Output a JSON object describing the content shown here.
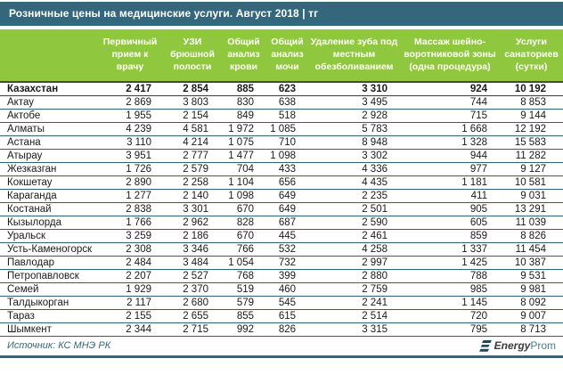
{
  "title": "Розничные цены на медицинские услуги. Август 2018 | тг",
  "source": {
    "text": "Источник: КС МНЭ РК"
  },
  "logo": {
    "energy": "Energy",
    "prom": "Prom"
  },
  "colors": {
    "teal": "#34677B",
    "green": "#8FC73E",
    "row_border": "#2F6173",
    "dark_border": "#474747",
    "logo_dark": "#1C4A59",
    "logo_prom": "#457F92"
  },
  "chart_data": {
    "type": "table",
    "title": "Розничные цены на медицинские услуги. Август 2018 | тг",
    "columns": [
      "Первичный прием к врачу",
      "УЗИ брюшной полости",
      "Общий анализ крови",
      "Общий анализ мочи",
      "Удаление зуба под местным обезболиванием",
      "Массаж шейно-воротниковой зоны (одна процедура)",
      "Услуги санаториев (сутки)"
    ],
    "rows": [
      {
        "region": "Казахстан",
        "bold": true,
        "values": [
          "2 417",
          "2 854",
          "885",
          "623",
          "3 310",
          "924",
          "10 192"
        ]
      },
      {
        "region": "Актау",
        "bold": false,
        "values": [
          "2 869",
          "3 803",
          "830",
          "638",
          "3 495",
          "744",
          "8 853"
        ]
      },
      {
        "region": "Актобе",
        "bold": false,
        "values": [
          "1 955",
          "2 154",
          "849",
          "518",
          "2 928",
          "715",
          "9 144"
        ]
      },
      {
        "region": "Алматы",
        "bold": false,
        "values": [
          "4 239",
          "4 581",
          "1 972",
          "1 085",
          "5 783",
          "1 668",
          "12 192"
        ]
      },
      {
        "region": "Астана",
        "bold": false,
        "values": [
          "3 110",
          "4 214",
          "1 075",
          "710",
          "8 948",
          "1 328",
          "15 583"
        ]
      },
      {
        "region": "Атырау",
        "bold": false,
        "values": [
          "3 951",
          "2 777",
          "1 477",
          "1 098",
          "3 302",
          "944",
          "11 282"
        ]
      },
      {
        "region": "Жезказган",
        "bold": false,
        "values": [
          "1 726",
          "2 579",
          "704",
          "433",
          "4 336",
          "977",
          "9 127"
        ]
      },
      {
        "region": "Кокшетау",
        "bold": false,
        "values": [
          "2 890",
          "2 258",
          "1 104",
          "656",
          "4 435",
          "1 181",
          "10 581"
        ]
      },
      {
        "region": "Караганда",
        "bold": false,
        "values": [
          "1 277",
          "2 140",
          "1 098",
          "649",
          "2 235",
          "411",
          "9 031"
        ]
      },
      {
        "region": "Костанай",
        "bold": false,
        "values": [
          "2 838",
          "3 301",
          "670",
          "649",
          "2 501",
          "905",
          "13 291"
        ]
      },
      {
        "region": "Кызылорда",
        "bold": false,
        "values": [
          "1 766",
          "2 962",
          "828",
          "687",
          "2 590",
          "605",
          "11 039"
        ]
      },
      {
        "region": "Уральск",
        "bold": false,
        "values": [
          "3 259",
          "2 186",
          "670",
          "445",
          "2 461",
          "859",
          "8 826"
        ]
      },
      {
        "region": "Усть-Каменогорск",
        "bold": false,
        "values": [
          "2 308",
          "3 346",
          "766",
          "532",
          "4 258",
          "1 337",
          "11 454"
        ]
      },
      {
        "region": "Павлодар",
        "bold": false,
        "values": [
          "2 484",
          "3 484",
          "1 054",
          "732",
          "2 997",
          "1 425",
          "10 387"
        ]
      },
      {
        "region": "Петропавловск",
        "bold": false,
        "values": [
          "2 207",
          "2 527",
          "768",
          "399",
          "2 880",
          "788",
          "9 531"
        ]
      },
      {
        "region": "Семей",
        "bold": false,
        "values": [
          "1 929",
          "2 370",
          "519",
          "460",
          "2 759",
          "985",
          "9 981"
        ]
      },
      {
        "region": "Талдыкорган",
        "bold": false,
        "values": [
          "2 117",
          "2 680",
          "579",
          "545",
          "2 241",
          "1 145",
          "8 092"
        ]
      },
      {
        "region": "Тараз",
        "bold": false,
        "values": [
          "2 155",
          "2 655",
          "855",
          "615",
          "2 514",
          "720",
          "9 007"
        ]
      },
      {
        "region": "Шымкент",
        "bold": false,
        "values": [
          "2 344",
          "2 715",
          "992",
          "826",
          "3 315",
          "795",
          "8 713"
        ]
      }
    ]
  }
}
